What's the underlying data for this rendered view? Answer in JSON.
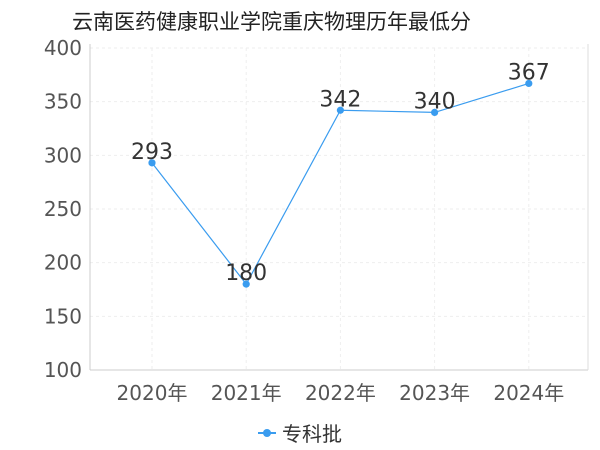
{
  "chart_data": {
    "type": "line",
    "title": "云南医药健康职业学院重庆物理历年最低分",
    "categories": [
      "2020年",
      "2021年",
      "2022年",
      "2023年",
      "2024年"
    ],
    "series": [
      {
        "name": "专科批",
        "values": [
          293,
          180,
          342,
          340,
          367
        ]
      }
    ],
    "ylim": [
      100,
      400
    ],
    "yticks": [
      100,
      150,
      200,
      250,
      300,
      350,
      400
    ],
    "grid": true,
    "legend": "bottom",
    "color": "#3a9cef"
  }
}
